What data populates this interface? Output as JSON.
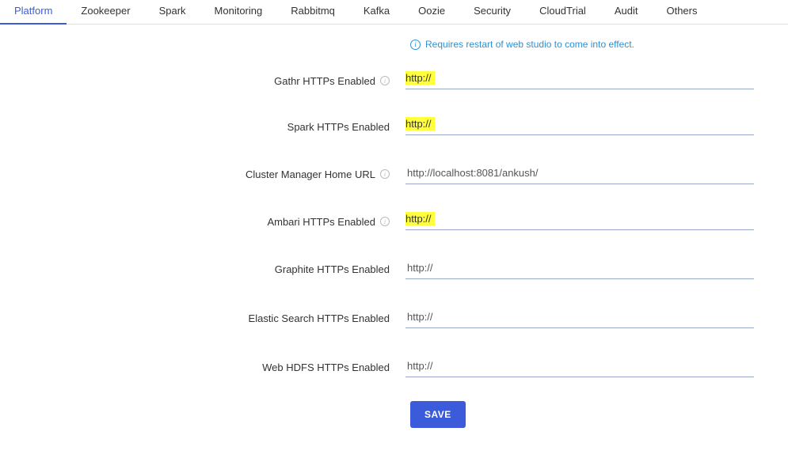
{
  "tabs": [
    {
      "label": "Platform",
      "active": true
    },
    {
      "label": "Zookeeper",
      "active": false
    },
    {
      "label": "Spark",
      "active": false
    },
    {
      "label": "Monitoring",
      "active": false
    },
    {
      "label": "Rabbitmq",
      "active": false
    },
    {
      "label": "Kafka",
      "active": false
    },
    {
      "label": "Oozie",
      "active": false
    },
    {
      "label": "Security",
      "active": false
    },
    {
      "label": "CloudTrial",
      "active": false
    },
    {
      "label": "Audit",
      "active": false
    },
    {
      "label": "Others",
      "active": false
    }
  ],
  "notice": "Requires restart of web studio to come into effect.",
  "fields": {
    "gathr": {
      "label": "Gathr HTTPs Enabled",
      "value": "http://",
      "info": true,
      "highlight": true
    },
    "spark": {
      "label": "Spark HTTPs Enabled",
      "value": "http://",
      "info": false,
      "highlight": true
    },
    "cluster": {
      "label": "Cluster Manager Home URL",
      "value": "http://localhost:8081/ankush/",
      "info": true,
      "highlight": false
    },
    "ambari": {
      "label": "Ambari HTTPs Enabled",
      "value": "http://",
      "info": true,
      "highlight": true
    },
    "graphite": {
      "label": "Graphite HTTPs Enabled",
      "value": "http://",
      "info": false,
      "highlight": false
    },
    "elastic": {
      "label": "Elastic Search HTTPs Enabled",
      "value": "http://",
      "info": false,
      "highlight": false
    },
    "webhdfs": {
      "label": "Web HDFS HTTPs Enabled",
      "value": "http://",
      "info": false,
      "highlight": false
    }
  },
  "save_label": "SAVE",
  "colors": {
    "accent": "#3b5bdb",
    "notice": "#2e90d1",
    "highlight": "#ffff3b",
    "input_border": "#9aa6c7"
  }
}
